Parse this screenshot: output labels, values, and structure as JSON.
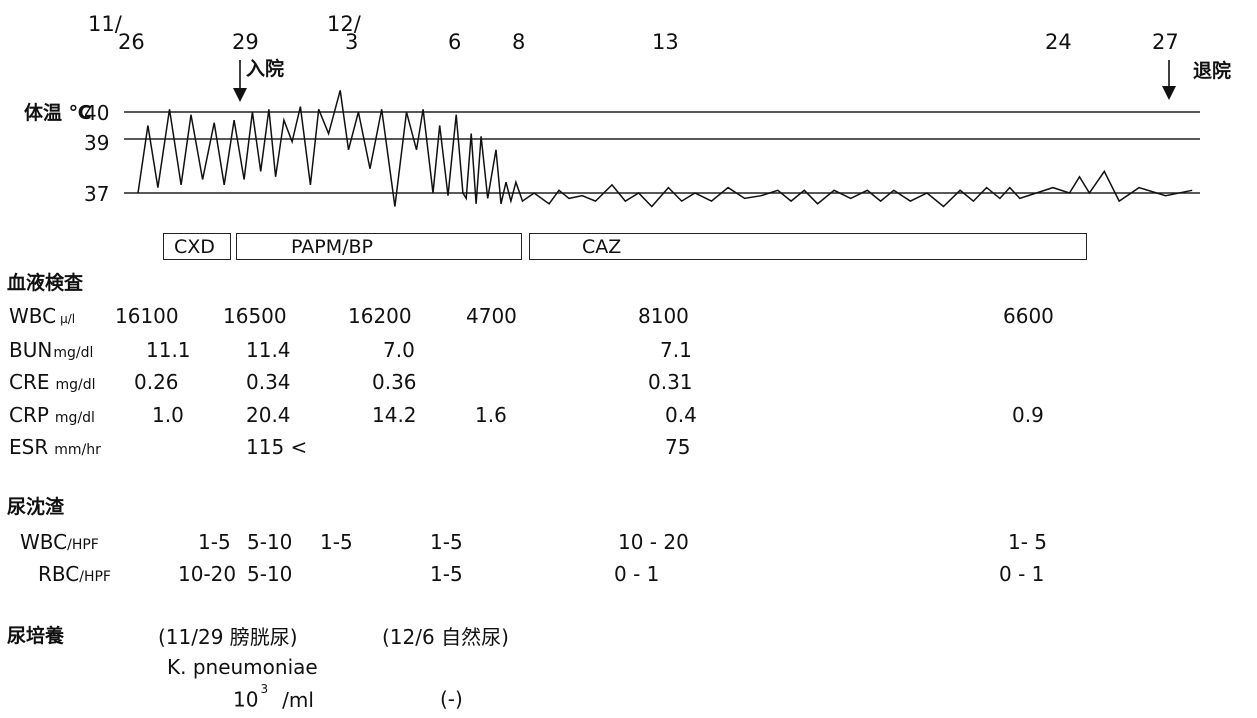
{
  "chart_data": {
    "type": "line",
    "title": "",
    "xlabel": "",
    "ylabel": "体温 ℃",
    "dates": [
      {
        "month": "11/",
        "day": "26"
      },
      {
        "month": "",
        "day": "29"
      },
      {
        "month": "12/",
        "day": "3"
      },
      {
        "month": "",
        "day": "6"
      },
      {
        "month": "",
        "day": "8"
      },
      {
        "month": "",
        "day": "13"
      },
      {
        "month": "",
        "day": "24"
      },
      {
        "month": "",
        "day": "27"
      }
    ],
    "events": {
      "admission": "入院",
      "discharge": "退院"
    },
    "y_ticks": [
      "40",
      "39",
      "37"
    ],
    "y_reference_lines": [
      40,
      39,
      37
    ],
    "grid": false,
    "legend": "none",
    "series": [
      {
        "values": [
          {
            "x": 26.0,
            "y": 37.0
          },
          {
            "x": 26.3,
            "y": 39.5
          },
          {
            "x": 26.6,
            "y": 37.2
          },
          {
            "x": 26.95,
            "y": 40.1
          },
          {
            "x": 27.3,
            "y": 37.3
          },
          {
            "x": 27.6,
            "y": 39.9
          },
          {
            "x": 27.95,
            "y": 37.5
          },
          {
            "x": 28.3,
            "y": 39.6
          },
          {
            "x": 28.6,
            "y": 37.3
          },
          {
            "x": 28.9,
            "y": 39.7
          },
          {
            "x": 29.2,
            "y": 37.5
          },
          {
            "x": 29.45,
            "y": 40.0
          },
          {
            "x": 29.7,
            "y": 37.8
          },
          {
            "x": 29.95,
            "y": 40.1
          },
          {
            "x": 30.15,
            "y": 37.6
          },
          {
            "x": 30.4,
            "y": 39.7
          },
          {
            "x": 30.65,
            "y": 38.9
          },
          {
            "x": 30.9,
            "y": 40.2
          },
          {
            "x": 31.2,
            "y": 37.3
          },
          {
            "x": 31.45,
            "y": 40.1
          },
          {
            "x": 31.75,
            "y": 39.2
          },
          {
            "x": 32.1,
            "y": 40.8
          },
          {
            "x": 32.35,
            "y": 38.6
          },
          {
            "x": 32.65,
            "y": 40.0
          },
          {
            "x": 33.0,
            "y": 37.9
          },
          {
            "x": 33.35,
            "y": 40.1
          },
          {
            "x": 33.75,
            "y": 36.5
          },
          {
            "x": 34.1,
            "y": 40.0
          },
          {
            "x": 34.4,
            "y": 38.6
          },
          {
            "x": 34.6,
            "y": 40.1
          },
          {
            "x": 34.9,
            "y": 37.0
          },
          {
            "x": 35.1,
            "y": 39.5
          },
          {
            "x": 35.35,
            "y": 36.9
          },
          {
            "x": 35.6,
            "y": 39.9
          },
          {
            "x": 35.8,
            "y": 37.0
          },
          {
            "x": 35.9,
            "y": 36.8
          },
          {
            "x": 36.05,
            "y": 39.2
          },
          {
            "x": 36.2,
            "y": 36.6
          },
          {
            "x": 36.35,
            "y": 39.1
          },
          {
            "x": 36.55,
            "y": 36.8
          },
          {
            "x": 36.8,
            "y": 38.6
          },
          {
            "x": 36.95,
            "y": 36.6
          },
          {
            "x": 37.1,
            "y": 37.4
          },
          {
            "x": 37.25,
            "y": 36.7
          },
          {
            "x": 37.4,
            "y": 37.4
          },
          {
            "x": 37.6,
            "y": 36.7
          },
          {
            "x": 37.95,
            "y": 37.0
          },
          {
            "x": 38.4,
            "y": 36.6
          },
          {
            "x": 38.7,
            "y": 37.1
          },
          {
            "x": 39.0,
            "y": 36.8
          },
          {
            "x": 39.4,
            "y": 36.9
          },
          {
            "x": 39.8,
            "y": 36.7
          },
          {
            "x": 40.3,
            "y": 37.3
          },
          {
            "x": 40.7,
            "y": 36.7
          },
          {
            "x": 41.1,
            "y": 37.0
          },
          {
            "x": 41.5,
            "y": 36.5
          },
          {
            "x": 42.0,
            "y": 37.2
          },
          {
            "x": 42.4,
            "y": 36.7
          },
          {
            "x": 42.8,
            "y": 37.0
          },
          {
            "x": 43.3,
            "y": 36.7
          },
          {
            "x": 43.8,
            "y": 37.2
          },
          {
            "x": 44.3,
            "y": 36.8
          },
          {
            "x": 44.8,
            "y": 36.9
          },
          {
            "x": 45.3,
            "y": 37.1
          },
          {
            "x": 45.7,
            "y": 36.7
          },
          {
            "x": 46.1,
            "y": 37.1
          },
          {
            "x": 46.5,
            "y": 36.6
          },
          {
            "x": 47.0,
            "y": 37.1
          },
          {
            "x": 47.5,
            "y": 36.8
          },
          {
            "x": 48.0,
            "y": 37.1
          },
          {
            "x": 48.4,
            "y": 36.7
          },
          {
            "x": 48.8,
            "y": 37.1
          },
          {
            "x": 49.3,
            "y": 36.7
          },
          {
            "x": 49.8,
            "y": 37.0
          },
          {
            "x": 50.3,
            "y": 36.5
          },
          {
            "x": 50.8,
            "y": 37.1
          },
          {
            "x": 51.2,
            "y": 36.7
          },
          {
            "x": 51.6,
            "y": 37.2
          },
          {
            "x": 52.0,
            "y": 36.8
          },
          {
            "x": 52.3,
            "y": 37.2
          },
          {
            "x": 52.6,
            "y": 36.8
          },
          {
            "x": 53.1,
            "y": 37.0
          },
          {
            "x": 53.6,
            "y": 37.2
          },
          {
            "x": 54.1,
            "y": 37.0
          },
          {
            "x": 54.4,
            "y": 37.6
          },
          {
            "x": 54.7,
            "y": 37.0
          },
          {
            "x": 55.15,
            "y": 37.8
          },
          {
            "x": 55.6,
            "y": 36.7
          },
          {
            "x": 56.2,
            "y": 37.2
          },
          {
            "x": 57.0,
            "y": 36.9
          },
          {
            "x": 57.8,
            "y": 37.1
          }
        ]
      }
    ],
    "drugs": [
      {
        "name": "CXD",
        "start": 26.8,
        "end": 29.0
      },
      {
        "name": "PAPM/BP",
        "start": 29.2,
        "end": 38.0
      },
      {
        "name": "CAZ",
        "start": 38.3,
        "end": 55.0
      }
    ]
  },
  "blood": {
    "title": "血液検査",
    "rows": [
      {
        "name": "WBC",
        "unit": "μ/l",
        "values": [
          {
            "col": "c1",
            "v": "16100"
          },
          {
            "col": "c2",
            "v": "16500"
          },
          {
            "col": "c3",
            "v": "16200"
          },
          {
            "col": "c4",
            "v": "4700"
          },
          {
            "col": "c5",
            "v": "8100"
          },
          {
            "col": "c6",
            "v": "6600"
          }
        ]
      },
      {
        "name": "BUN",
        "unit": "mg/dl",
        "values": [
          {
            "col": "c1",
            "v": "11.1"
          },
          {
            "col": "c2",
            "v": "11.4"
          },
          {
            "col": "c3",
            "v": "7.0"
          },
          {
            "col": "c5",
            "v": "7.1"
          }
        ]
      },
      {
        "name": "CRE",
        "unit": "mg/dl",
        "values": [
          {
            "col": "c1",
            "v": "0.26"
          },
          {
            "col": "c2",
            "v": "0.34"
          },
          {
            "col": "c3",
            "v": "0.36"
          },
          {
            "col": "c5",
            "v": "0.31"
          }
        ]
      },
      {
        "name": "CRP",
        "unit": "mg/dl",
        "values": [
          {
            "col": "c1",
            "v": "1.0"
          },
          {
            "col": "c2",
            "v": "20.4"
          },
          {
            "col": "c3",
            "v": "14.2"
          },
          {
            "col": "c4",
            "v": "1.6"
          },
          {
            "col": "c5",
            "v": "0.4"
          },
          {
            "col": "c6",
            "v": "0.9"
          }
        ]
      },
      {
        "name": "ESR",
        "unit": "mm/hr",
        "values": [
          {
            "col": "c2",
            "v": "115 <"
          },
          {
            "col": "c5",
            "v": "75"
          }
        ]
      }
    ]
  },
  "urine_sediment": {
    "title": "尿沈渣",
    "rows": [
      {
        "name": "WBC",
        "unit": "/HPF",
        "values": [
          {
            "col": "u1",
            "v": "1-5"
          },
          {
            "col": "u2",
            "v": "5-10"
          },
          {
            "col": "u3",
            "v": "1-5"
          },
          {
            "col": "u4",
            "v": "1-5"
          },
          {
            "col": "u5",
            "v": "10 - 20"
          },
          {
            "col": "u6",
            "v": "1- 5"
          }
        ]
      },
      {
        "name": "RBC",
        "unit": "/HPF",
        "values": [
          {
            "col": "u1",
            "v": "10-20"
          },
          {
            "col": "u2",
            "v": "5-10"
          },
          {
            "col": "u4",
            "v": "1-5"
          },
          {
            "col": "u5",
            "v": "0 - 1"
          },
          {
            "col": "u6",
            "v": "0 - 1"
          }
        ]
      }
    ]
  },
  "urine_culture": {
    "title": "尿培養",
    "sample1": "(11/29 膀胱尿)",
    "sample2": "(12/6 自然尿)",
    "organism": "K. pneumoniae",
    "count_base": "10",
    "count_exp": "3",
    "count_unit": "/ml",
    "result2": "(-)"
  }
}
